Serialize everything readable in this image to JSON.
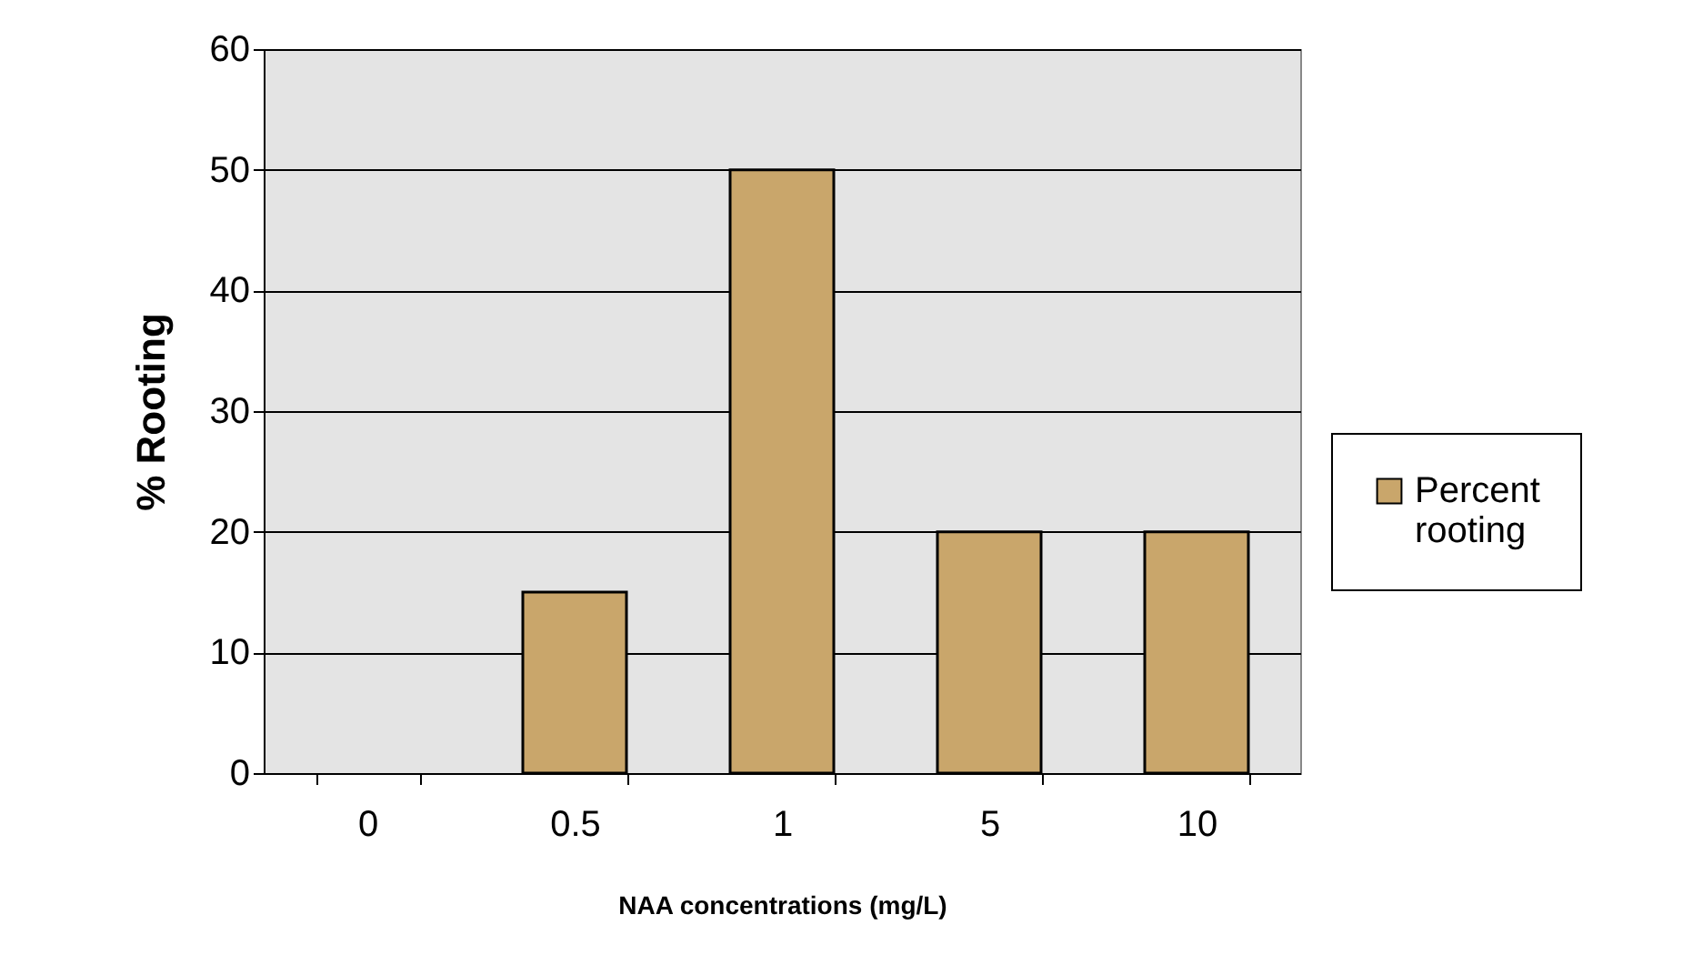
{
  "chart_data": {
    "type": "bar",
    "xlabel": "NAA concentrations (mg/L)",
    "ylabel": "% Rooting",
    "categories": [
      "0",
      "0.5",
      "1",
      "5",
      "10"
    ],
    "series": [
      {
        "name": "Percent rooting",
        "color": "#c9a66b",
        "values": [
          0,
          15,
          50,
          20,
          20
        ]
      }
    ],
    "ylim": [
      0,
      60
    ],
    "yticks": [
      0,
      10,
      20,
      30,
      40,
      50,
      60
    ],
    "grid": "y",
    "legend": "right"
  }
}
